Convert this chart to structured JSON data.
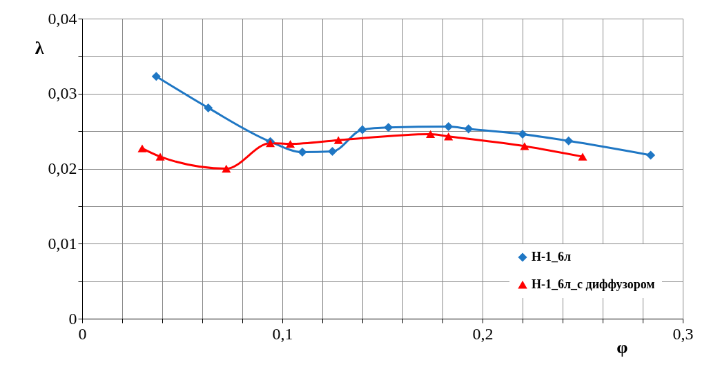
{
  "chart_data": {
    "type": "line",
    "xlabel": "φ",
    "ylabel": "λ",
    "xlim": [
      0,
      0.3
    ],
    "xticks": [
      0,
      {
        "value": 0.1,
        "label": "0,1"
      },
      {
        "value": 0.2,
        "label": "0,2"
      },
      {
        "value": 0.3,
        "label": "0,3"
      }
    ],
    "ylim": [
      0,
      0.04
    ],
    "yticks": [
      0,
      {
        "value": 0.01,
        "label": "0,01"
      },
      {
        "value": 0.02,
        "label": "0,02"
      },
      {
        "value": 0.03,
        "label": "0,03"
      },
      {
        "value": 0.04,
        "label": "0,04"
      }
    ],
    "grid": true,
    "legend": "bottom right",
    "line_style": "solid",
    "series": [
      {
        "name": "Н-1_6л",
        "color": "#1f77c4",
        "marker": "diamond",
        "x": [
          0.037,
          0.063,
          0.094,
          0.11,
          0.125,
          0.14,
          0.153,
          0.183,
          0.193,
          0.22,
          0.243,
          0.284
        ],
        "values": [
          0.0323,
          0.0281,
          0.0236,
          0.0222,
          0.0223,
          0.0252,
          0.0255,
          0.0256,
          0.0253,
          0.0246,
          0.0237,
          0.0218
        ]
      },
      {
        "name": "Н-1_6л_с диффузором",
        "color": "#ff0000",
        "marker": "triangle",
        "x": [
          0.03,
          0.039,
          0.072,
          0.094,
          0.104,
          0.128,
          0.174,
          0.183,
          0.221,
          0.25
        ],
        "values": [
          0.0227,
          0.0216,
          0.02,
          0.0234,
          0.0233,
          0.0238,
          0.0246,
          0.0243,
          0.023,
          0.0216
        ]
      }
    ]
  }
}
